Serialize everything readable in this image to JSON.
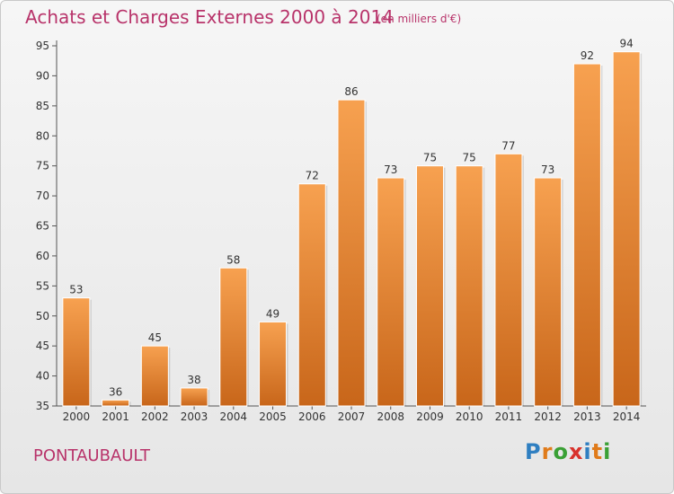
{
  "header": {
    "title": "Achats et Charges Externes 2000 à 2014",
    "subtitle": "(en milliers d'€)"
  },
  "footer": {
    "commune": "PONTAUBAULT",
    "logo": {
      "letters": [
        "P",
        "r",
        "o",
        "x",
        "i",
        "t",
        "i"
      ],
      "colors": [
        "#2f7fc1",
        "#e07b1a",
        "#3aa035",
        "#d8322c",
        "#2f7fc1",
        "#e07b1a",
        "#3aa035"
      ]
    }
  },
  "chart_data": {
    "type": "bar",
    "title": "Achats et Charges Externes 2000 à 2014",
    "subtitle": "(en milliers d'€)",
    "categories": [
      "2000",
      "2001",
      "2002",
      "2003",
      "2004",
      "2005",
      "2006",
      "2007",
      "2008",
      "2009",
      "2010",
      "2011",
      "2012",
      "2013",
      "2014"
    ],
    "values": [
      53,
      36,
      45,
      38,
      58,
      49,
      72,
      86,
      73,
      75,
      75,
      77,
      73,
      92,
      94
    ],
    "yticks": [
      "35",
      "40",
      "45",
      "50",
      "55",
      "60",
      "65",
      "70",
      "75",
      "80",
      "85",
      "90",
      "95"
    ],
    "ylim": [
      35,
      95
    ],
    "grid": false,
    "bar_color": "#f0922d",
    "xlabel": "",
    "ylabel": ""
  }
}
